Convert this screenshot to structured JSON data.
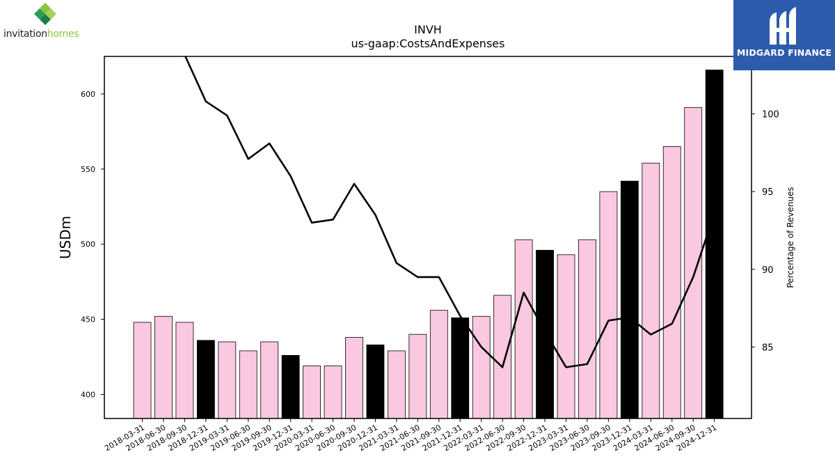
{
  "branding": {
    "company_word1": "invitation",
    "company_word2": "homes",
    "publisher": "MIDGARD FINANCE"
  },
  "chart_data": {
    "type": "bar",
    "title": "INVH",
    "subtitle": "us-gaap:CostsAndExpenses",
    "ylabel": "USDm",
    "y2label": "Percentage of Revenues",
    "ylim": [
      384,
      625
    ],
    "y2lim": [
      80.4,
      103.7
    ],
    "yticks": [
      400,
      450,
      500,
      550,
      600
    ],
    "y2ticks": [
      85,
      90,
      95,
      100
    ],
    "categories": [
      "2018-03-31",
      "2018-06-30",
      "2018-09-30",
      "2018-12-31",
      "2019-03-31",
      "2019-06-30",
      "2019-09-30",
      "2019-12-31",
      "2020-03-31",
      "2020-06-30",
      "2020-09-30",
      "2020-12-31",
      "2021-03-31",
      "2021-06-30",
      "2021-09-30",
      "2021-12-31",
      "2022-03-31",
      "2022-06-30",
      "2022-09-30",
      "2022-12-31",
      "2023-03-31",
      "2023-06-30",
      "2023-09-30",
      "2023-12-31",
      "2024-03-31",
      "2024-06-30",
      "2024-09-30",
      "2024-12-31"
    ],
    "series": [
      {
        "type": "bar",
        "values": [
          448,
          452,
          448,
          436,
          435,
          429,
          435,
          426,
          419,
          419,
          438,
          433,
          429,
          440,
          456,
          451,
          452,
          466,
          503,
          496,
          493,
          503,
          535,
          542,
          554,
          565,
          591,
          616
        ],
        "color": "#fac8e0",
        "highlight_color": "#000000",
        "highlight_every": 4
      },
      {
        "type": "line",
        "axis": "right",
        "values": [
          106.5,
          104.0,
          103.8,
          100.8,
          99.9,
          97.1,
          98.1,
          96.0,
          93.0,
          93.2,
          95.5,
          93.5,
          90.4,
          89.5,
          89.5,
          87.0,
          85.0,
          83.7,
          88.5,
          86.0,
          83.7,
          83.9,
          86.7,
          86.9,
          85.8,
          86.5,
          89.5,
          93.6
        ],
        "color": "#000000"
      }
    ],
    "grid": false,
    "legend": "none"
  }
}
